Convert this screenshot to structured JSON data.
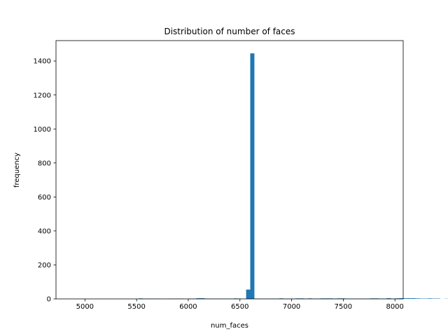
{
  "chart_data": {
    "type": "bar",
    "title": "Distribution of number of faces",
    "xlabel": "num_faces",
    "ylabel": "frequency",
    "xlim": [
      4720,
      8080
    ],
    "ylim": [
      0,
      1520
    ],
    "x_ticks": [
      5000,
      5500,
      6000,
      6500,
      7000,
      7500,
      8000
    ],
    "x_tick_labels": [
      "5000",
      "5500",
      "6000",
      "6500",
      "7000",
      "7500",
      "8000"
    ],
    "y_ticks": [
      0,
      200,
      400,
      600,
      800,
      1000,
      1200,
      1400
    ],
    "y_tick_labels": [
      "0",
      "200",
      "400",
      "600",
      "800",
      "1000",
      "1200",
      "1400"
    ],
    "bar_color": "#1f77b4",
    "bin_start": 4880,
    "bin_width": 40,
    "counts": [
      0,
      0,
      0,
      0,
      0,
      0,
      0,
      0,
      0,
      0,
      0,
      0,
      0,
      0,
      0,
      0,
      3,
      2,
      2,
      2,
      2,
      1,
      0,
      2,
      2,
      2,
      2,
      0,
      2,
      2,
      4,
      4,
      2,
      2,
      2,
      2,
      2,
      2,
      2,
      3,
      2,
      0,
      55,
      1445,
      2,
      2,
      2,
      2,
      2,
      2,
      3,
      2,
      2,
      2,
      3,
      3,
      2,
      3,
      2,
      2,
      3,
      3,
      3,
      2,
      3,
      3,
      2,
      2,
      2,
      2,
      2,
      2,
      3,
      3,
      2,
      2,
      4,
      2,
      3,
      4,
      4,
      4,
      4,
      3,
      2,
      2,
      3,
      2,
      2,
      0,
      1
    ]
  }
}
